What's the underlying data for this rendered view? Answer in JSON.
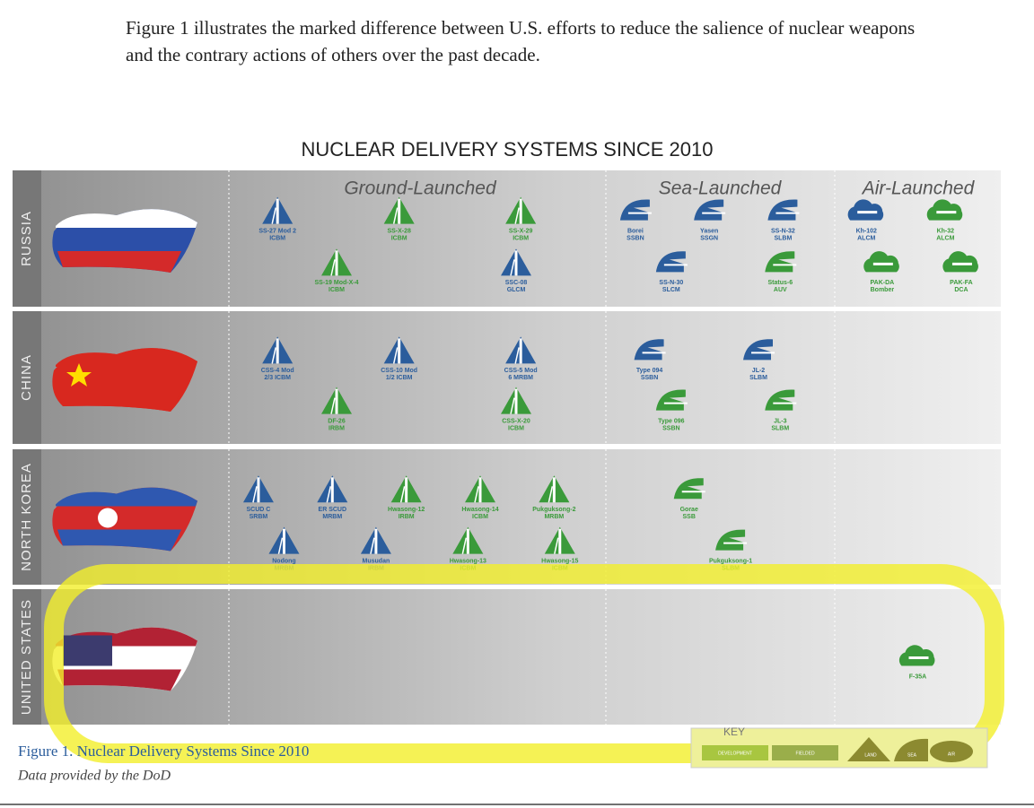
{
  "intro": "Figure 1 illustrates the marked difference between U.S. efforts to reduce the salience of nuclear weapons and the contrary actions of others over the past decade.",
  "figure": {
    "title": "NUCLEAR DELIVERY SYSTEMS SINCE 2010"
  },
  "columns": [
    "Ground-Launched",
    "Sea-Launched",
    "Air-Launched"
  ],
  "rows": [
    {
      "name": "RUSSIA",
      "ground": [
        {
          "name": "SS-27 Mod 2",
          "type": "ICBM",
          "color": "#2b5d9c"
        },
        {
          "name": "SS-X-28",
          "type": "ICBM",
          "color": "#3a9a3a"
        },
        {
          "name": "SS-X-29",
          "type": "ICBM",
          "color": "#3a9a3a"
        },
        {
          "name": "SS-19 Mod-X-4",
          "type": "ICBM",
          "color": "#3a9a3a"
        },
        {
          "name": "SSC-08",
          "type": "GLCM",
          "color": "#2b5d9c"
        }
      ],
      "sea": [
        {
          "name": "Borei",
          "type": "SSBN",
          "color": "#2b5d9c"
        },
        {
          "name": "Yasen",
          "type": "SSGN",
          "color": "#2b5d9c"
        },
        {
          "name": "SS-N-32",
          "type": "SLBM",
          "color": "#2b5d9c"
        },
        {
          "name": "SS-N-30",
          "type": "SLCM",
          "color": "#2b5d9c"
        },
        {
          "name": "Status-6",
          "type": "AUV",
          "color": "#3a9a3a"
        }
      ],
      "air": [
        {
          "name": "Kh-102",
          "type": "ALCM",
          "color": "#2b5d9c"
        },
        {
          "name": "Kh-32",
          "type": "ALCM",
          "color": "#3a9a3a"
        },
        {
          "name": "PAK-DA",
          "type": "Bomber",
          "color": "#3a9a3a"
        },
        {
          "name": "PAK-FA",
          "type": "DCA",
          "color": "#3a9a3a"
        }
      ]
    },
    {
      "name": "CHINA",
      "ground": [
        {
          "name": "CSS-4 Mod",
          "type": "2/3 ICBM",
          "color": "#2b5d9c"
        },
        {
          "name": "CSS-10 Mod",
          "type": "1/2 ICBM",
          "color": "#2b5d9c"
        },
        {
          "name": "CSS-5 Mod",
          "type": "6 MRBM",
          "color": "#2b5d9c"
        },
        {
          "name": "DF-26",
          "type": "IRBM",
          "color": "#3a9a3a"
        },
        {
          "name": "CSS-X-20",
          "type": "ICBM",
          "color": "#3a9a3a"
        }
      ],
      "sea": [
        {
          "name": "Type 094",
          "type": "SSBN",
          "color": "#2b5d9c"
        },
        {
          "name": "JL-2",
          "type": "SLBM",
          "color": "#2b5d9c"
        },
        {
          "name": "Type 096",
          "type": "SSBN",
          "color": "#3a9a3a"
        },
        {
          "name": "JL-3",
          "type": "SLBM",
          "color": "#3a9a3a"
        }
      ],
      "air": []
    },
    {
      "name": "NORTH KOREA",
      "ground": [
        {
          "name": "SCUD C",
          "type": "SRBM",
          "color": "#2b5d9c"
        },
        {
          "name": "ER SCUD",
          "type": "MRBM",
          "color": "#2b5d9c"
        },
        {
          "name": "Hwasong-12",
          "type": "IRBM",
          "color": "#3a9a3a"
        },
        {
          "name": "Hwasong-14",
          "type": "ICBM",
          "color": "#3a9a3a"
        },
        {
          "name": "Pukguksong-2",
          "type": "MRBM",
          "color": "#3a9a3a"
        },
        {
          "name": "Nodong",
          "type": "MRBM",
          "color": "#2b5d9c"
        },
        {
          "name": "Musudan",
          "type": "IRBM",
          "color": "#2b5d9c"
        },
        {
          "name": "Hwasong-13",
          "type": "ICBM",
          "color": "#3a9a3a"
        },
        {
          "name": "Hwasong-15",
          "type": "ICBM",
          "color": "#3a9a3a"
        }
      ],
      "sea": [
        {
          "name": "Gorae",
          "type": "SSB",
          "color": "#3a9a3a"
        },
        {
          "name": "Pukguksong-1",
          "type": "SLBM",
          "color": "#3a9a3a"
        }
      ],
      "air": []
    },
    {
      "name": "UNITED STATES",
      "ground": [],
      "sea": [],
      "air": [
        {
          "name": "F-35A",
          "type": "",
          "color": "#3a9a3a"
        }
      ]
    }
  ],
  "key": {
    "title": "KEY",
    "labels": [
      "DEVELOPMENT",
      "FIELDED",
      "LAND",
      "SEA",
      "AIR"
    ]
  },
  "caption": {
    "title": "Figure 1. Nuclear Delivery Systems Since 2010",
    "source": "Data provided by the DoD"
  }
}
